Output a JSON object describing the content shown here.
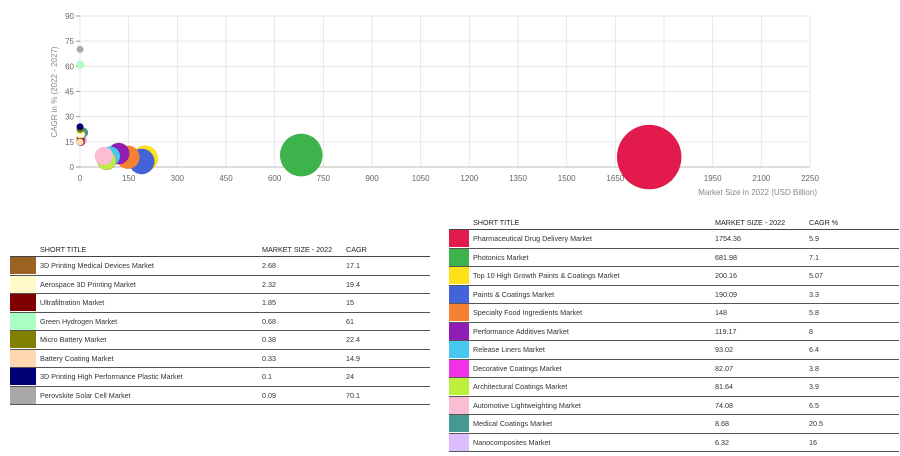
{
  "chart_data": {
    "type": "scatter",
    "title": "",
    "xlabel": "Market Size in 2022 (USD Billion)",
    "ylabel": "CAGR in % (2022 - 2027)",
    "xlim": [
      0,
      2250
    ],
    "ylim": [
      0,
      90
    ],
    "xticks": [
      0,
      150,
      300,
      450,
      600,
      750,
      900,
      1050,
      1200,
      1350,
      1500,
      1650,
      1800,
      1950,
      2100,
      2250
    ],
    "yticks": [
      0,
      15,
      30,
      45,
      60,
      75,
      90
    ],
    "grid": true,
    "points": [
      {
        "title": "Pharmaceutical Drug Delivery Market",
        "x": 1754.36,
        "y": 5.9,
        "color": "#e31a4c"
      },
      {
        "title": "Photonics Market",
        "x": 681.98,
        "y": 7.1,
        "color": "#3cb44b"
      },
      {
        "title": "Top 10 High Growth Paints & Coatings Market",
        "x": 200.16,
        "y": 5.07,
        "color": "#ffe119"
      },
      {
        "title": "Paints & Coatings Market",
        "x": 190.09,
        "y": 3.3,
        "color": "#4363d8"
      },
      {
        "title": "Specialty Food Ingredients Market",
        "x": 148,
        "y": 5.8,
        "color": "#f58231"
      },
      {
        "title": "Performance Additives Market",
        "x": 119.17,
        "y": 8,
        "color": "#911eb4"
      },
      {
        "title": "Release Liners Market",
        "x": 93.02,
        "y": 6.4,
        "color": "#46c8f0"
      },
      {
        "title": "Decorative Coatings Market",
        "x": 82.07,
        "y": 3.8,
        "color": "#f032e6"
      },
      {
        "title": "Architectural Coatings Market",
        "x": 81.64,
        "y": 3.9,
        "color": "#bcf03c"
      },
      {
        "title": "Automotive Lightweighting Market",
        "x": 74.08,
        "y": 6.5,
        "color": "#fabed4"
      },
      {
        "title": "Medical Coatings Market",
        "x": 8.68,
        "y": 20.5,
        "color": "#469990"
      },
      {
        "title": "Nanocomposites Market",
        "x": 6.32,
        "y": 16,
        "color": "#dcbeff"
      },
      {
        "title": "3D Printing Medical Devices Market",
        "x": 2.68,
        "y": 17.1,
        "color": "#9a6324"
      },
      {
        "title": "Aerospace 3D Printing Market",
        "x": 2.32,
        "y": 19.4,
        "color": "#fffac8"
      },
      {
        "title": "Ultrafiltration Market",
        "x": 1.85,
        "y": 15,
        "color": "#800000"
      },
      {
        "title": "Green Hydrogen Market",
        "x": 0.68,
        "y": 61,
        "color": "#aaffc3"
      },
      {
        "title": "Micro Battery Market",
        "x": 0.38,
        "y": 22.4,
        "color": "#808000"
      },
      {
        "title": "Battery Coating Market",
        "x": 0.33,
        "y": 14.9,
        "color": "#ffd8b1"
      },
      {
        "title": "3D Printing High Performance Plastic Market",
        "x": 0.1,
        "y": 24,
        "color": "#000075"
      },
      {
        "title": "Perovskite Solar Cell Market",
        "x": 0.09,
        "y": 70.1,
        "color": "#a9a9a9"
      }
    ]
  },
  "tables": {
    "headers": {
      "title": "SHORT TITLE",
      "size": "MARKET SIZE - 2022",
      "cagr": "CAGR",
      "cagr_pct": "CAGR %"
    },
    "left_rows": [
      {
        "title": "3D Printing Medical Devices Market",
        "size": "2.68",
        "cagr": "17.1",
        "color": "#9a6324"
      },
      {
        "title": "Aerospace 3D Printing Market",
        "size": "2.32",
        "cagr": "19.4",
        "color": "#fffac8"
      },
      {
        "title": "Ultrafiltration Market",
        "size": "1.85",
        "cagr": "15",
        "color": "#800000"
      },
      {
        "title": "Green Hydrogen Market",
        "size": "0.68",
        "cagr": "61",
        "color": "#aaffc3"
      },
      {
        "title": "Micro Battery Market",
        "size": "0.38",
        "cagr": "22.4",
        "color": "#808000"
      },
      {
        "title": "Battery Coating Market",
        "size": "0.33",
        "cagr": "14.9",
        "color": "#ffd8b1"
      },
      {
        "title": "3D Printing High Performance Plastic Market",
        "size": "0.1",
        "cagr": "24",
        "color": "#000075"
      },
      {
        "title": "Perovskite Solar Cell Market",
        "size": "0.09",
        "cagr": "70.1",
        "color": "#a9a9a9"
      }
    ],
    "right_rows": [
      {
        "title": "Pharmaceutical Drug Delivery Market",
        "size": "1754.36",
        "cagr": "5.9",
        "color": "#e31a4c"
      },
      {
        "title": "Photonics Market",
        "size": "681.98",
        "cagr": "7.1",
        "color": "#3cb44b"
      },
      {
        "title": "Top 10 High Growth Paints & Coatings Market",
        "size": "200.16",
        "cagr": "5.07",
        "color": "#ffe119"
      },
      {
        "title": "Paints & Coatings Market",
        "size": "190.09",
        "cagr": "3.3",
        "color": "#4363d8"
      },
      {
        "title": "Specialty Food Ingredients Market",
        "size": "148",
        "cagr": "5.8",
        "color": "#f58231"
      },
      {
        "title": "Performance Additives Market",
        "size": "119.17",
        "cagr": "8",
        "color": "#911eb4"
      },
      {
        "title": "Release Liners Market",
        "size": "93.02",
        "cagr": "6.4",
        "color": "#46c8f0"
      },
      {
        "title": "Decorative Coatings Market",
        "size": "82.07",
        "cagr": "3.8",
        "color": "#f032e6"
      },
      {
        "title": "Architectural Coatings Market",
        "size": "81.64",
        "cagr": "3.9",
        "color": "#bcf03c"
      },
      {
        "title": "Automotive Lightweighting Market",
        "size": "74.08",
        "cagr": "6.5",
        "color": "#fabed4"
      },
      {
        "title": "Medical Coatings Market",
        "size": "8.68",
        "cagr": "20.5",
        "color": "#469990"
      },
      {
        "title": "Nanocomposites Market",
        "size": "6.32",
        "cagr": "16",
        "color": "#dcbeff"
      }
    ]
  }
}
